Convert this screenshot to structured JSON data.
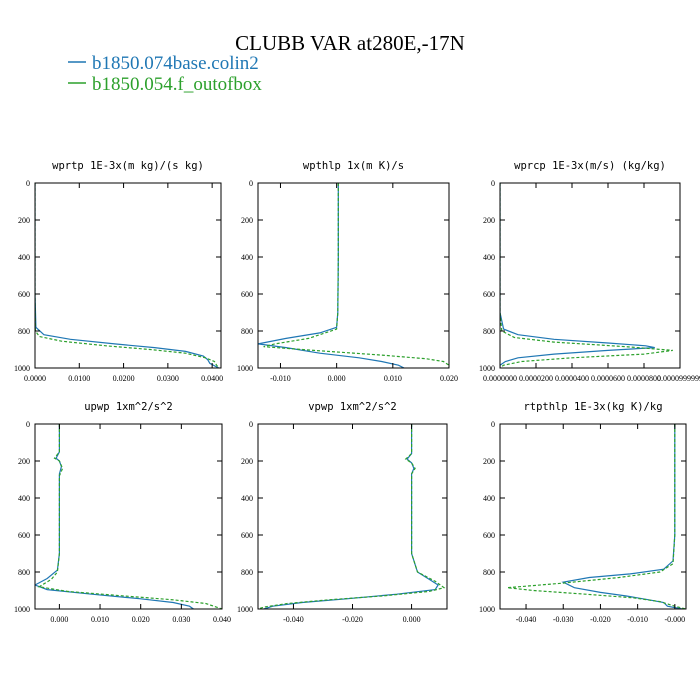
{
  "figure": {
    "title": "CLUBB VAR at280E,-17N",
    "legend": [
      {
        "label": "b1850.074base.colin2",
        "color": "#1f77b4",
        "dash": "solid"
      },
      {
        "label": "b1850.054.f_outofbox",
        "color": "#2ca02c",
        "dash": "dashed"
      }
    ]
  },
  "chart_data": [
    {
      "type": "line",
      "title": "wprtp  1E-3x(m kg)/(s kg)",
      "xlim": [
        0.0,
        0.042
      ],
      "ylim": [
        0,
        1000
      ],
      "y_inverted": true,
      "xticks": [
        0.0,
        0.01,
        0.02,
        0.03,
        0.04
      ],
      "xtick_labels": [
        "0.0000",
        "0.0100",
        "0.0200",
        "0.0300",
        "0.0400"
      ],
      "yticks": [
        0,
        200,
        400,
        600,
        800,
        1000
      ],
      "ytick_labels": [
        "0",
        "200",
        "400",
        "600",
        "800",
        "1000"
      ],
      "series": [
        {
          "name": "b1850.074base.colin2",
          "color": "#1f77b4",
          "dash": "solid",
          "points": [
            [
              0,
              0
            ],
            [
              0,
              600
            ],
            [
              0.0002,
              780
            ],
            [
              0.002,
              820
            ],
            [
              0.008,
              845
            ],
            [
              0.018,
              870
            ],
            [
              0.027,
              890
            ],
            [
              0.034,
              910
            ],
            [
              0.038,
              935
            ],
            [
              0.039,
              955
            ],
            [
              0.0395,
              975
            ],
            [
              0.0415,
              1000
            ]
          ]
        },
        {
          "name": "b1850.054.f_outofbox",
          "color": "#2ca02c",
          "dash": "dashed",
          "points": [
            [
              0,
              0
            ],
            [
              0,
              600
            ],
            [
              0.0001,
              800
            ],
            [
              0.001,
              830
            ],
            [
              0.006,
              855
            ],
            [
              0.016,
              880
            ],
            [
              0.026,
              900
            ],
            [
              0.034,
              920
            ],
            [
              0.0385,
              945
            ],
            [
              0.0405,
              965
            ],
            [
              0.041,
              985
            ],
            [
              0.0415,
              1000
            ]
          ]
        }
      ]
    },
    {
      "type": "line",
      "title": "wpthlp  1x(m K)/s",
      "xlim": [
        -0.014,
        0.02
      ],
      "ylim": [
        0,
        1000
      ],
      "y_inverted": true,
      "xticks": [
        -0.01,
        0.0,
        0.01,
        0.02
      ],
      "xtick_labels": [
        "-0.010",
        "0.000",
        "0.010",
        "0.020"
      ],
      "yticks": [
        0,
        200,
        400,
        600,
        800,
        1000
      ],
      "ytick_labels": [
        "0",
        "200",
        "400",
        "600",
        "800",
        "1000"
      ],
      "series": [
        {
          "name": "b1850.074base.colin2",
          "color": "#1f77b4",
          "dash": "solid",
          "points": [
            [
              0.0003,
              0
            ],
            [
              0.0003,
              400
            ],
            [
              0.0002,
              700
            ],
            [
              0.0,
              780
            ],
            [
              -0.003,
              810
            ],
            [
              -0.009,
              840
            ],
            [
              -0.014,
              870
            ],
            [
              -0.009,
              890
            ],
            [
              -0.003,
              920
            ],
            [
              0.004,
              945
            ],
            [
              0.008,
              965
            ],
            [
              0.011,
              985
            ],
            [
              0.012,
              1000
            ]
          ]
        },
        {
          "name": "b1850.054.f_outofbox",
          "color": "#2ca02c",
          "dash": "dashed",
          "points": [
            [
              0.0003,
              0
            ],
            [
              0.0003,
              400
            ],
            [
              0.0002,
              700
            ],
            [
              0.0,
              790
            ],
            [
              -0.005,
              840
            ],
            [
              -0.011,
              870
            ],
            [
              -0.013,
              885
            ],
            [
              -0.004,
              905
            ],
            [
              0.008,
              930
            ],
            [
              0.016,
              950
            ],
            [
              0.019,
              965
            ],
            [
              0.02,
              985
            ],
            [
              0.02,
              1000
            ]
          ]
        }
      ]
    },
    {
      "type": "line",
      "title": "wprcp  1E-3x(m/s) (kg/kg)",
      "xlim": [
        0.0,
        0.0001
      ],
      "ylim": [
        0,
        1000
      ],
      "y_inverted": true,
      "xticks": [
        0.0,
        2e-05,
        4e-05,
        6e-05,
        8e-05,
        0.0001
      ],
      "xtick_labels": [
        "0.0000000",
        "0.0000200",
        "0.0000400",
        "0.0000600",
        "0.0000800",
        "0.0000999999"
      ],
      "yticks": [
        0,
        200,
        400,
        600,
        800,
        1000
      ],
      "ytick_labels": [
        "0",
        "200",
        "400",
        "600",
        "800",
        "1000"
      ],
      "series": [
        {
          "name": "b1850.074base.colin2",
          "color": "#1f77b4",
          "dash": "solid",
          "points": [
            [
              0,
              0
            ],
            [
              0,
              700
            ],
            [
              2e-06,
              790
            ],
            [
              1e-05,
              820
            ],
            [
              3e-05,
              845
            ],
            [
              6e-05,
              865
            ],
            [
              8.1e-05,
              880
            ],
            [
              8.6e-05,
              890
            ],
            [
              6e-05,
              905
            ],
            [
              3e-05,
              925
            ],
            [
              1e-05,
              945
            ],
            [
              3e-06,
              965
            ],
            [
              0,
              985
            ],
            [
              0,
              1000
            ]
          ]
        },
        {
          "name": "b1850.054.f_outofbox",
          "color": "#2ca02c",
          "dash": "dashed",
          "points": [
            [
              0,
              0
            ],
            [
              0,
              700
            ],
            [
              1e-06,
              800
            ],
            [
              8e-06,
              835
            ],
            [
              3e-05,
              860
            ],
            [
              7e-05,
              885
            ],
            [
              9.6e-05,
              905
            ],
            [
              8e-05,
              925
            ],
            [
              4e-05,
              945
            ],
            [
              1.2e-05,
              965
            ],
            [
              2e-06,
              985
            ],
            [
              0,
              1000
            ]
          ]
        }
      ]
    },
    {
      "type": "line",
      "title": "upwp  1xm^2/s^2",
      "xlim": [
        -0.006,
        0.04
      ],
      "ylim": [
        0,
        1000
      ],
      "y_inverted": true,
      "xticks": [
        0.0,
        0.01,
        0.02,
        0.03,
        0.04
      ],
      "xtick_labels": [
        "0.000",
        "0.010",
        "0.020",
        "0.030",
        "0.040"
      ],
      "yticks": [
        0,
        200,
        400,
        600,
        800,
        1000
      ],
      "ytick_labels": [
        "0",
        "200",
        "400",
        "600",
        "800",
        "1000"
      ],
      "series": [
        {
          "name": "b1850.074base.colin2",
          "color": "#1f77b4",
          "dash": "solid",
          "points": [
            [
              0,
              0
            ],
            [
              0,
              150
            ],
            [
              -0.0008,
              185
            ],
            [
              0,
              200
            ],
            [
              0.0005,
              230
            ],
            [
              0,
              270
            ],
            [
              0,
              700
            ],
            [
              -0.0005,
              790
            ],
            [
              -0.003,
              835
            ],
            [
              -0.006,
              870
            ],
            [
              -0.003,
              895
            ],
            [
              0.008,
              920
            ],
            [
              0.02,
              945
            ],
            [
              0.028,
              965
            ],
            [
              0.032,
              985
            ],
            [
              0.033,
              1000
            ]
          ]
        },
        {
          "name": "b1850.054.f_outofbox",
          "color": "#2ca02c",
          "dash": "dashed",
          "points": [
            [
              0,
              0
            ],
            [
              0,
              150
            ],
            [
              -0.0012,
              185
            ],
            [
              0,
              200
            ],
            [
              0.0008,
              240
            ],
            [
              0,
              280
            ],
            [
              0,
              700
            ],
            [
              -0.0005,
              800
            ],
            [
              -0.002,
              840
            ],
            [
              -0.005,
              880
            ],
            [
              0.002,
              905
            ],
            [
              0.016,
              930
            ],
            [
              0.028,
              950
            ],
            [
              0.036,
              970
            ],
            [
              0.04,
              1000
            ]
          ]
        }
      ]
    },
    {
      "type": "line",
      "title": "vpwp  1xm^2/s^2",
      "xlim": [
        -0.052,
        0.012
      ],
      "ylim": [
        0,
        1000
      ],
      "y_inverted": true,
      "xticks": [
        -0.04,
        -0.02,
        0.0
      ],
      "xtick_labels": [
        "-0.040",
        "-0.020",
        "0.000"
      ],
      "yticks": [
        0,
        200,
        400,
        600,
        800,
        1000
      ],
      "ytick_labels": [
        "0",
        "200",
        "400",
        "600",
        "800",
        "1000"
      ],
      "series": [
        {
          "name": "b1850.074base.colin2",
          "color": "#1f77b4",
          "dash": "solid",
          "points": [
            [
              0,
              0
            ],
            [
              0,
              160
            ],
            [
              -0.0015,
              190
            ],
            [
              0,
              210
            ],
            [
              0.0008,
              240
            ],
            [
              0,
              270
            ],
            [
              0,
              700
            ],
            [
              0.002,
              800
            ],
            [
              0.006,
              840
            ],
            [
              0.009,
              870
            ],
            [
              0.008,
              895
            ],
            [
              -0.005,
              920
            ],
            [
              -0.022,
              945
            ],
            [
              -0.037,
              965
            ],
            [
              -0.047,
              985
            ],
            [
              -0.05,
              1000
            ]
          ]
        },
        {
          "name": "b1850.054.f_outofbox",
          "color": "#2ca02c",
          "dash": "dashed",
          "points": [
            [
              0,
              0
            ],
            [
              0,
              160
            ],
            [
              -0.002,
              190
            ],
            [
              0,
              210
            ],
            [
              0.0012,
              240
            ],
            [
              0,
              270
            ],
            [
              0,
              700
            ],
            [
              0.002,
              800
            ],
            [
              0.008,
              850
            ],
            [
              0.011,
              885
            ],
            [
              0.006,
              905
            ],
            [
              -0.01,
              930
            ],
            [
              -0.028,
              950
            ],
            [
              -0.042,
              970
            ],
            [
              -0.05,
              990
            ],
            [
              -0.052,
              1000
            ]
          ]
        }
      ]
    },
    {
      "type": "line",
      "title": "rtpthlp  1E-3x(kg K)/kg",
      "xlim": [
        -0.047,
        0.003
      ],
      "ylim": [
        0,
        1000
      ],
      "y_inverted": true,
      "xticks": [
        -0.04,
        -0.03,
        -0.02,
        -0.01,
        0.0
      ],
      "xtick_labels": [
        "-0.040",
        "-0.030",
        "-0.020",
        "-0.010",
        "-0.000"
      ],
      "yticks": [
        0,
        200,
        400,
        600,
        800,
        1000
      ],
      "ytick_labels": [
        "0",
        "200",
        "400",
        "600",
        "800",
        "1000"
      ],
      "series": [
        {
          "name": "b1850.074base.colin2",
          "color": "#1f77b4",
          "dash": "solid",
          "points": [
            [
              0,
              0
            ],
            [
              0,
              600
            ],
            [
              -0.0005,
              740
            ],
            [
              -0.003,
              785
            ],
            [
              -0.012,
              810
            ],
            [
              -0.023,
              830
            ],
            [
              -0.03,
              855
            ],
            [
              -0.027,
              885
            ],
            [
              -0.02,
              910
            ],
            [
              -0.013,
              930
            ],
            [
              -0.007,
              950
            ],
            [
              -0.003,
              965
            ],
            [
              -0.002,
              985
            ],
            [
              0.002,
              1000
            ]
          ]
        },
        {
          "name": "b1850.054.f_outofbox",
          "color": "#2ca02c",
          "dash": "dashed",
          "points": [
            [
              0,
              0
            ],
            [
              0,
              600
            ],
            [
              -0.0005,
              755
            ],
            [
              -0.004,
              800
            ],
            [
              -0.015,
              830
            ],
            [
              -0.03,
              860
            ],
            [
              -0.045,
              885
            ],
            [
              -0.038,
              900
            ],
            [
              -0.024,
              920
            ],
            [
              -0.011,
              940
            ],
            [
              -0.004,
              960
            ],
            [
              0.0,
              985
            ],
            [
              0.003,
              1000
            ]
          ]
        }
      ]
    }
  ]
}
